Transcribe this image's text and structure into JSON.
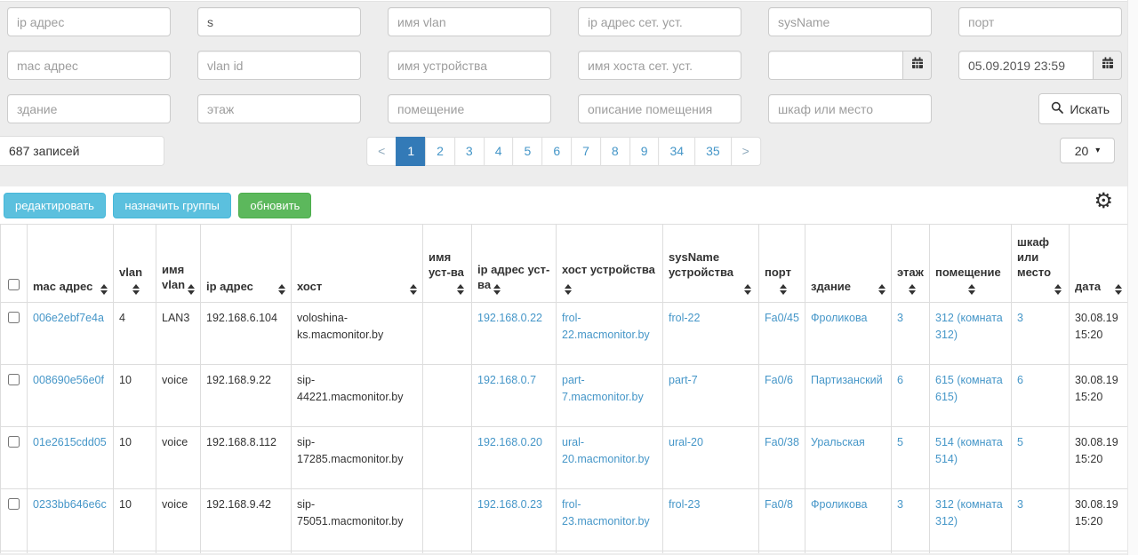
{
  "colors": {
    "link": "#4596c8",
    "active_page_bg": "#337ab7",
    "info_button": "#5bc0de",
    "success_button": "#5cb85c"
  },
  "icons": {
    "page_size_caret": "▾",
    "settings_gear": "⚙"
  },
  "filters": {
    "fields": [
      [
        {
          "name": "ip-address",
          "placeholder": "ip адрес",
          "value": ""
        },
        {
          "name": "host",
          "placeholder": "",
          "value": "s"
        },
        {
          "name": "vlan-name",
          "placeholder": "имя vlan",
          "value": ""
        },
        {
          "name": "network-device-ip",
          "placeholder": "ip адрес сет. уст.",
          "value": ""
        },
        {
          "name": "sysname",
          "placeholder": "sysName",
          "value": ""
        },
        {
          "name": "port",
          "placeholder": "порт",
          "value": ""
        }
      ],
      [
        {
          "name": "mac-address",
          "placeholder": "mac адрес",
          "value": ""
        },
        {
          "name": "vlan-id",
          "placeholder": "vlan id",
          "value": ""
        },
        {
          "name": "device-name",
          "placeholder": "имя устройства",
          "value": ""
        },
        {
          "name": "network-device-hostname",
          "placeholder": "имя хоста сет. уст.",
          "value": ""
        },
        {
          "name": "date-from",
          "type": "date",
          "placeholder": "",
          "value": ""
        },
        {
          "name": "date-to",
          "type": "date",
          "placeholder": "",
          "value": "05.09.2019 23:59"
        }
      ],
      [
        {
          "name": "building",
          "placeholder": "здание",
          "value": ""
        },
        {
          "name": "floor",
          "placeholder": "этаж",
          "value": ""
        },
        {
          "name": "room",
          "placeholder": "помещение",
          "value": ""
        },
        {
          "name": "room-description",
          "placeholder": "описание помещения",
          "value": ""
        },
        {
          "name": "rack-or-place",
          "placeholder": "шкаф или место",
          "value": ""
        },
        {
          "name": "search",
          "type": "button",
          "label": "Искать"
        }
      ]
    ]
  },
  "list": {
    "records_label": "687 записей",
    "prev": "<",
    "next": ">",
    "pages": [
      "1",
      "2",
      "3",
      "4",
      "5",
      "6",
      "7",
      "8",
      "9",
      "34",
      "35"
    ],
    "active_page": "1",
    "page_size": "20"
  },
  "toolbar": {
    "edit": "редактировать",
    "assign_groups": "назначить группы",
    "refresh": "обновить"
  },
  "table": {
    "columns": [
      {
        "key": "mac",
        "label": "mac адрес",
        "link": true
      },
      {
        "key": "vlan",
        "label": "vlan",
        "link": false
      },
      {
        "key": "vlan_name",
        "label": "имя vlan",
        "link": false
      },
      {
        "key": "ip",
        "label": "ip адрес",
        "link": false
      },
      {
        "key": "host",
        "label": "хост",
        "link": false
      },
      {
        "key": "dev_name",
        "label": "имя уст-ва",
        "link": false
      },
      {
        "key": "dev_ip",
        "label": "ip адрес уст-ва",
        "link": true
      },
      {
        "key": "dev_host",
        "label": "хост устройства",
        "link": true
      },
      {
        "key": "sysname",
        "label": "sysName устройства",
        "link": true
      },
      {
        "key": "port",
        "label": "порт",
        "link": true
      },
      {
        "key": "building",
        "label": "здание",
        "link": true
      },
      {
        "key": "floor",
        "label": "этаж",
        "link": true
      },
      {
        "key": "room",
        "label": "помещение",
        "link": true
      },
      {
        "key": "place",
        "label": "шкаф или место",
        "link": true
      },
      {
        "key": "date",
        "label": "дата",
        "link": false
      }
    ],
    "rows": [
      {
        "mac": "006e2ebf7e4a",
        "vlan": "4",
        "vlan_name": "LAN3",
        "ip": "192.168.6.104",
        "host": "voloshina-ks.macmonitor.by",
        "dev_name": "",
        "dev_ip": "192.168.0.22",
        "dev_host": "frol-22.macmonitor.by",
        "sysname": "frol-22",
        "port": "Fa0/45",
        "building": "Фроликова",
        "floor": "3",
        "room": "312 (комната 312)",
        "place": "3",
        "date": "30.08.19 15:20"
      },
      {
        "mac": "008690e56e0f",
        "vlan": "10",
        "vlan_name": "voice",
        "ip": "192.168.9.22",
        "host": "sip-44221.macmonitor.by",
        "dev_name": "",
        "dev_ip": "192.168.0.7",
        "dev_host": "part-7.macmonitor.by",
        "sysname": "part-7",
        "port": "Fa0/6",
        "building": "Партизанский",
        "floor": "6",
        "room": "615 (комната 615)",
        "place": "6",
        "date": "30.08.19 15:20"
      },
      {
        "mac": "01e2615cdd05",
        "vlan": "10",
        "vlan_name": "voice",
        "ip": "192.168.8.112",
        "host": "sip-17285.macmonitor.by",
        "dev_name": "",
        "dev_ip": "192.168.0.20",
        "dev_host": "ural-20.macmonitor.by",
        "sysname": "ural-20",
        "port": "Fa0/38",
        "building": "Уральская",
        "floor": "5",
        "room": "514 (комната 514)",
        "place": "5",
        "date": "30.08.19 15:20"
      },
      {
        "mac": "0233bb646e6c",
        "vlan": "10",
        "vlan_name": "voice",
        "ip": "192.168.9.42",
        "host": "sip-75051.macmonitor.by",
        "dev_name": "",
        "dev_ip": "192.168.0.23",
        "dev_host": "frol-23.macmonitor.by",
        "sysname": "frol-23",
        "port": "Fa0/8",
        "building": "Фроликова",
        "floor": "3",
        "room": "312 (комната 312)",
        "place": "3",
        "date": "30.08.19 15:20"
      }
    ]
  }
}
